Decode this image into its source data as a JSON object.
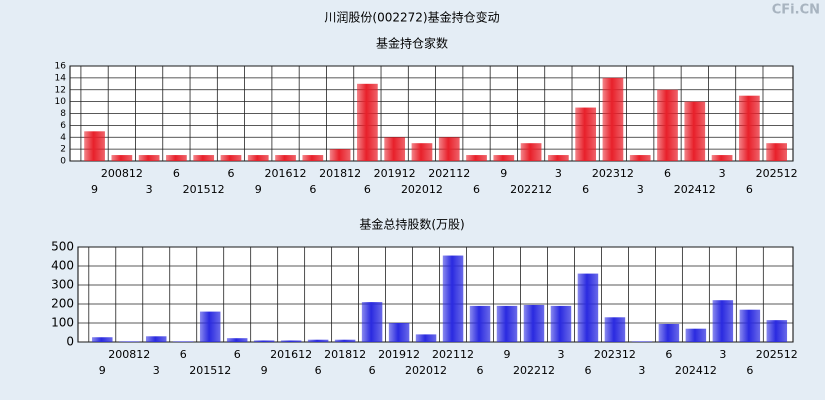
{
  "title": "川润股份(002272)基金持仓变动",
  "watermark": "CFi.CN",
  "chart_data": [
    {
      "type": "bar",
      "title": "基金持仓家数",
      "color": "#e8202a",
      "categories": [
        "9",
        "200812",
        "3",
        "6",
        "201512",
        "6",
        "9",
        "201612",
        "6",
        "201812",
        "6",
        "201912",
        "202012",
        "202112",
        "6",
        "9",
        "202212",
        "3",
        "6",
        "202312",
        "3",
        "6",
        "202412",
        "3",
        "6",
        "202512"
      ],
      "values": [
        5,
        1,
        1,
        1,
        1,
        1,
        1,
        1,
        1,
        2,
        13,
        4,
        3,
        4,
        1,
        1,
        3,
        1,
        9,
        14,
        1,
        12,
        10,
        1,
        11,
        3
      ],
      "ylim": [
        0,
        16
      ],
      "yticks": [
        0,
        2,
        4,
        6,
        8,
        10,
        12,
        14,
        16
      ],
      "grid": true
    },
    {
      "type": "bar",
      "title": "基金总持股数(万股)",
      "color": "#2a2ae0",
      "categories": [
        "9",
        "200812",
        "3",
        "6",
        "201512",
        "6",
        "9",
        "201612",
        "6",
        "201812",
        "6",
        "201912",
        "202012",
        "202112",
        "6",
        "9",
        "202212",
        "3",
        "6",
        "202312",
        "3",
        "6",
        "202412",
        "3",
        "6",
        "202512"
      ],
      "values": [
        25,
        3,
        30,
        3,
        160,
        20,
        8,
        8,
        12,
        12,
        210,
        100,
        40,
        455,
        190,
        190,
        195,
        190,
        360,
        130,
        3,
        95,
        70,
        220,
        170,
        115
      ],
      "ylim": [
        0,
        500
      ],
      "yticks": [
        0,
        100,
        200,
        300,
        400,
        500
      ],
      "grid": true
    }
  ]
}
